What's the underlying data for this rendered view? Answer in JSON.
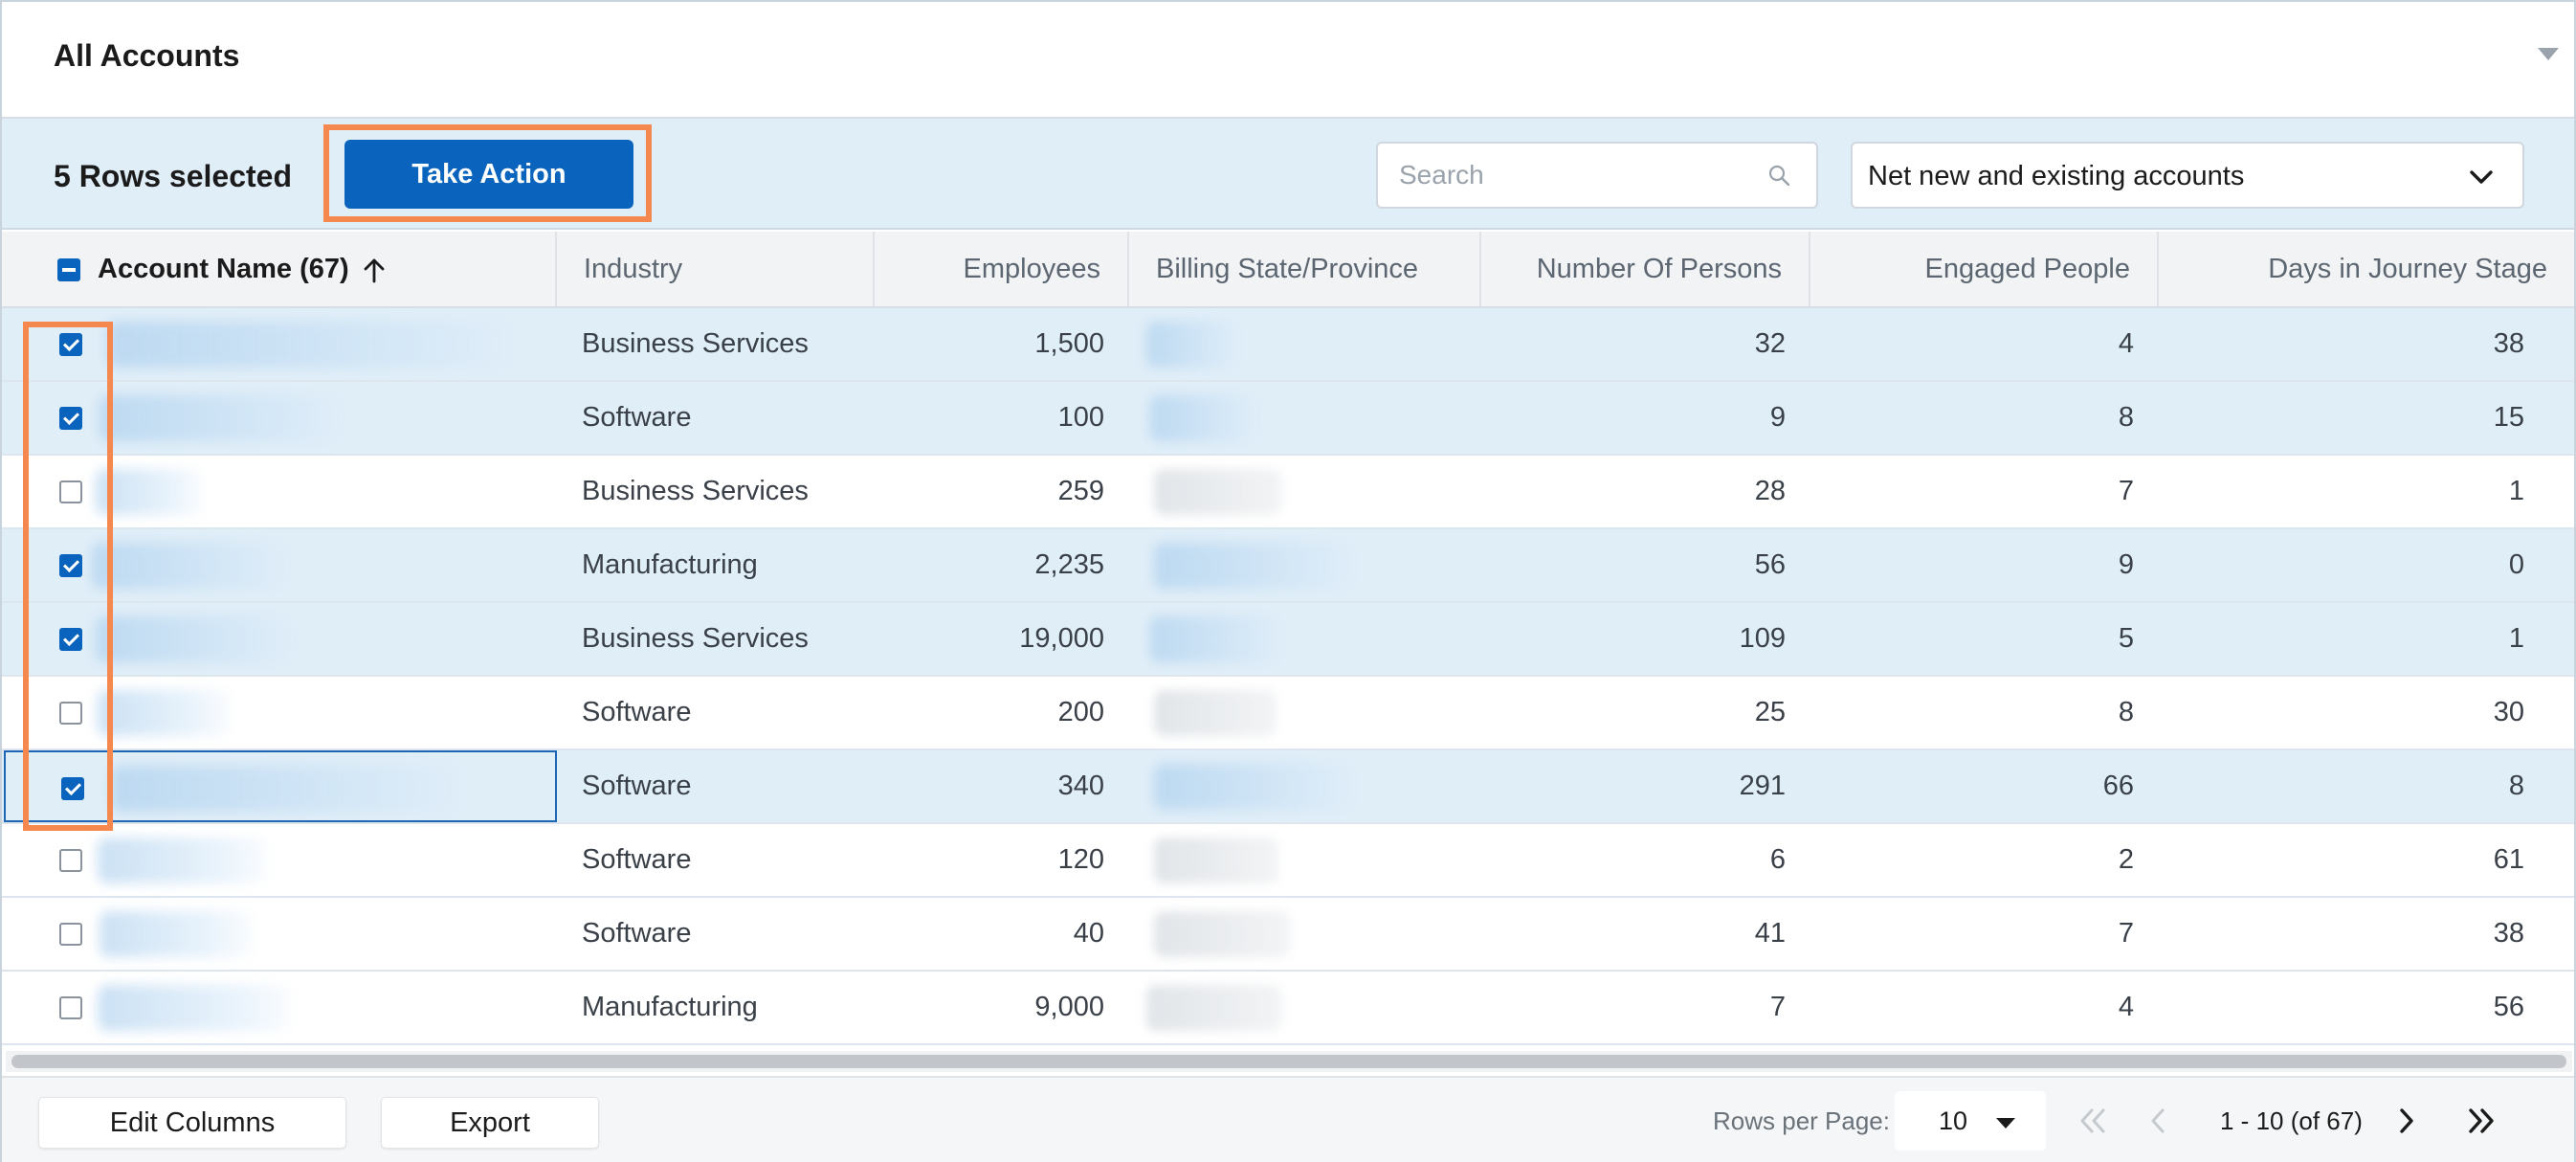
{
  "header": {
    "title": "All Accounts",
    "collapse_icon": "caret-down-icon"
  },
  "toolbar": {
    "selected_label": "5 Rows selected",
    "action_label": "Take Action",
    "search_placeholder": "Search",
    "filter_value": "Net new and existing accounts"
  },
  "table": {
    "columns": {
      "name": "Account Name (67)",
      "industry": "Industry",
      "employees": "Employees",
      "billing": "Billing State/Province",
      "persons": "Number Of Persons",
      "engaged": "Engaged People",
      "days": "Days in Journey Stage"
    },
    "sort": "ascending",
    "rows": [
      {
        "selected": true,
        "industry": "Business Services",
        "employees": "1,500",
        "persons": "32",
        "engaged": "4",
        "days": "38"
      },
      {
        "selected": true,
        "industry": "Software",
        "employees": "100",
        "persons": "9",
        "engaged": "8",
        "days": "15"
      },
      {
        "selected": false,
        "industry": "Business Services",
        "employees": "259",
        "persons": "28",
        "engaged": "7",
        "days": "1"
      },
      {
        "selected": true,
        "industry": "Manufacturing",
        "employees": "2,235",
        "persons": "56",
        "engaged": "9",
        "days": "0"
      },
      {
        "selected": true,
        "industry": "Business Services",
        "employees": "19,000",
        "persons": "109",
        "engaged": "5",
        "days": "1"
      },
      {
        "selected": false,
        "industry": "Software",
        "employees": "200",
        "persons": "25",
        "engaged": "8",
        "days": "30"
      },
      {
        "selected": true,
        "industry": "Software",
        "employees": "340",
        "persons": "291",
        "engaged": "66",
        "days": "8"
      },
      {
        "selected": false,
        "industry": "Software",
        "employees": "120",
        "persons": "6",
        "engaged": "2",
        "days": "61"
      },
      {
        "selected": false,
        "industry": "Software",
        "employees": "40",
        "persons": "41",
        "engaged": "7",
        "days": "38"
      },
      {
        "selected": false,
        "industry": "Manufacturing",
        "employees": "9,000",
        "persons": "7",
        "engaged": "4",
        "days": "56"
      }
    ]
  },
  "footer": {
    "edit_columns": "Edit Columns",
    "export": "Export",
    "rows_per_page_label": "Rows per Page:",
    "rows_per_page": "10",
    "range": "1 - 10 (of 67)"
  },
  "colors": {
    "accent": "#0a64bd",
    "selected_row": "#e0eef8",
    "highlight": "#f5884f"
  }
}
